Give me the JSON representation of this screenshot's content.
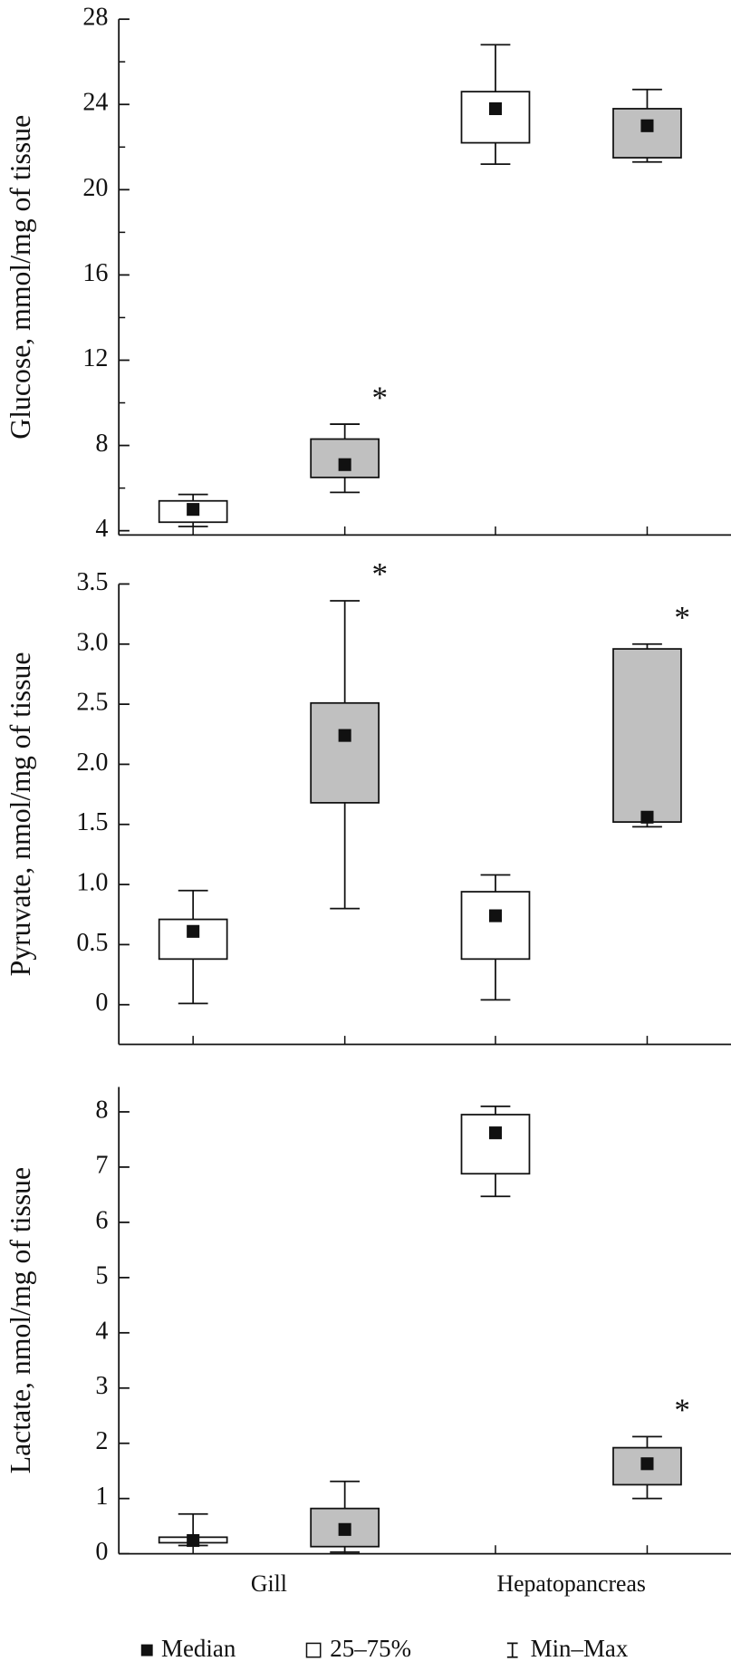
{
  "chart_data": [
    {
      "type": "box",
      "ylabel": "Glucose, mmol/mg of tissue",
      "ylim": [
        3.8,
        28
      ],
      "yticks": [
        4,
        8,
        12,
        16,
        20,
        24,
        28
      ],
      "minor_yticks": [
        6,
        10,
        14,
        18,
        22,
        26
      ],
      "series": [
        {
          "color": "#ffffff",
          "boxes": [
            {
              "min": 4.2,
              "q1": 4.4,
              "median": 5.0,
              "q3": 5.4,
              "max": 5.7
            },
            {
              "min": 21.2,
              "q1": 22.2,
              "median": 23.8,
              "q3": 24.6,
              "max": 26.8
            }
          ]
        },
        {
          "color": "#c0c0c0",
          "boxes": [
            {
              "min": 5.8,
              "q1": 6.5,
              "median": 7.1,
              "q3": 8.3,
              "max": 9.0,
              "annotation": "*"
            },
            {
              "min": 21.3,
              "q1": 21.5,
              "median": 23.0,
              "q3": 23.8,
              "max": 24.7
            }
          ]
        }
      ]
    },
    {
      "type": "box",
      "ylabel": "Pyruvate, nmol/mg of tissue",
      "ylim": [
        -0.33,
        3.5
      ],
      "yticks": [
        0,
        0.5,
        {
          "value": 1,
          "label": "1.0"
        },
        1.5,
        {
          "value": 2,
          "label": "2.0"
        },
        2.5,
        {
          "value": 3,
          "label": "3.0"
        },
        3.5
      ],
      "series": [
        {
          "color": "#ffffff",
          "boxes": [
            {
              "min": 0.01,
              "q1": 0.38,
              "median": 0.61,
              "q3": 0.71,
              "max": 0.95
            },
            {
              "min": 0.04,
              "q1": 0.38,
              "median": 0.74,
              "q3": 0.94,
              "max": 1.08
            }
          ]
        },
        {
          "color": "#c0c0c0",
          "boxes": [
            {
              "min": 0.8,
              "q1": 1.68,
              "median": 2.24,
              "q3": 2.51,
              "max": 3.36,
              "annotation": "*"
            },
            {
              "min": 1.48,
              "q1": 1.52,
              "median": 1.56,
              "q3": 2.96,
              "max": 3.0,
              "annotation": "*"
            }
          ]
        }
      ]
    },
    {
      "type": "box",
      "ylabel": "Lactate, nmol/mg of tissue",
      "ylim": [
        0,
        8.45
      ],
      "yticks": [
        0,
        1,
        2,
        3,
        4,
        5,
        6,
        7,
        8
      ],
      "categories": [
        "Gill",
        "Hepatopancreas"
      ],
      "series": [
        {
          "color": "#ffffff",
          "boxes": [
            {
              "min": 0.15,
              "q1": 0.2,
              "median": 0.24,
              "q3": 0.3,
              "max": 0.72
            },
            {
              "min": 6.47,
              "q1": 6.88,
              "median": 7.62,
              "q3": 7.95,
              "max": 8.1
            }
          ]
        },
        {
          "color": "#c0c0c0",
          "boxes": [
            {
              "min": 0.03,
              "q1": 0.13,
              "median": 0.44,
              "q3": 0.82,
              "max": 1.31
            },
            {
              "min": 1.0,
              "q1": 1.25,
              "median": 1.63,
              "q3": 1.92,
              "max": 2.12,
              "annotation": "*"
            }
          ]
        }
      ]
    }
  ],
  "legend": {
    "median": "Median",
    "box": "25–75%",
    "whisker": "Min–Max"
  }
}
